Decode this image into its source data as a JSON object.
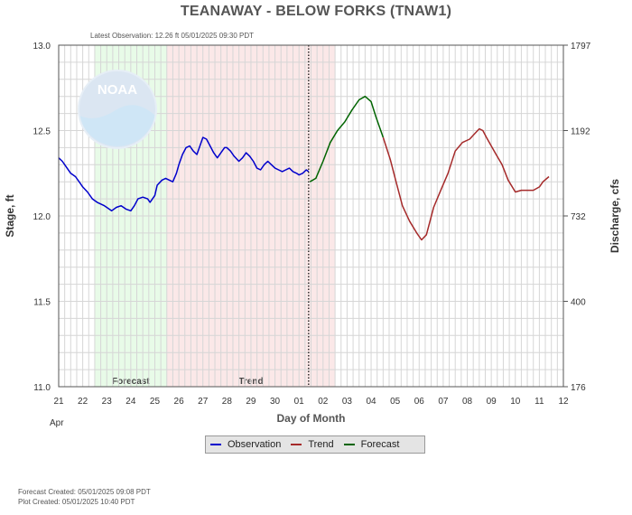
{
  "page": {
    "title": "TEANAWAY - BELOW FORKS  (TNAW1)",
    "latest_observation": "Latest Observation:  12.26 ft 05/01/2025 09:30 PDT",
    "forecast_created": "Forecast Created: 05/01/2025 09:08 PDT",
    "plot_created": "Plot Created: 05/01/2025 10:40 PDT",
    "logo_text": "NOAA"
  },
  "legend": [
    {
      "label": "Observation",
      "color": "#0000cc"
    },
    {
      "label": "Trend",
      "color": "#a52a2a"
    },
    {
      "label": "Forecast",
      "color": "#006400"
    }
  ],
  "chart_data": {
    "type": "line",
    "xlabel": "Day of Month",
    "x_month_label": "Apr",
    "ylabel_left": "Stage, ft",
    "ylabel_right": "Discharge, cfs",
    "x_tick_labels": [
      "21",
      "22",
      "23",
      "24",
      "25",
      "26",
      "27",
      "28",
      "29",
      "30",
      "01",
      "02",
      "03",
      "04",
      "05",
      "06",
      "07",
      "08",
      "09",
      "10",
      "11",
      "12"
    ],
    "ylim_left": [
      11.0,
      13.0
    ],
    "y_ticks_left": [
      "11.0",
      "11.5",
      "12.0",
      "12.5",
      "13.0"
    ],
    "y_ticks_right": [
      {
        "stage": 11.0,
        "label": "176"
      },
      {
        "stage": 11.5,
        "label": "400"
      },
      {
        "stage": 12.0,
        "label": "732"
      },
      {
        "stage": 12.5,
        "label": "1192"
      },
      {
        "stage": 13.0,
        "label": "1797"
      }
    ],
    "grid": true,
    "legend_position": "bottom-center",
    "regions": [
      {
        "label": "Forecast",
        "start_day": 1.5,
        "end_day": 4.5,
        "color": "#e8fbe8"
      },
      {
        "label": "Trend",
        "start_day": 4.5,
        "end_day": 11.5,
        "color": "#fbe8e8"
      }
    ],
    "observation_time_day": 10.4,
    "series": [
      {
        "name": "Observation",
        "color": "#0000cc",
        "x": [
          0,
          0.15,
          0.3,
          0.5,
          0.7,
          0.9,
          1.0,
          1.2,
          1.4,
          1.6,
          1.75,
          1.9,
          2.0,
          2.2,
          2.4,
          2.6,
          2.8,
          3.0,
          3.15,
          3.3,
          3.5,
          3.7,
          3.8,
          4.0,
          4.1,
          4.3,
          4.45,
          4.6,
          4.75,
          4.9,
          5.0,
          5.15,
          5.3,
          5.45,
          5.6,
          5.75,
          5.9,
          6.0,
          6.15,
          6.3,
          6.45,
          6.6,
          6.75,
          6.9,
          7.0,
          7.15,
          7.3,
          7.5,
          7.65,
          7.8,
          7.95,
          8.1,
          8.25,
          8.4,
          8.55,
          8.7,
          8.85,
          9.0,
          9.15,
          9.3,
          9.45,
          9.6,
          9.75,
          9.9,
          10.0,
          10.15,
          10.3,
          10.4
        ],
        "y": [
          12.34,
          12.32,
          12.29,
          12.25,
          12.23,
          12.19,
          12.17,
          12.14,
          12.1,
          12.08,
          12.07,
          12.06,
          12.05,
          12.03,
          12.05,
          12.06,
          12.04,
          12.03,
          12.06,
          12.1,
          12.11,
          12.1,
          12.08,
          12.12,
          12.18,
          12.21,
          12.22,
          12.21,
          12.2,
          12.25,
          12.3,
          12.36,
          12.4,
          12.41,
          12.38,
          12.36,
          12.42,
          12.46,
          12.45,
          12.41,
          12.37,
          12.34,
          12.37,
          12.4,
          12.4,
          12.38,
          12.35,
          12.32,
          12.34,
          12.37,
          12.35,
          12.32,
          12.28,
          12.27,
          12.3,
          12.32,
          12.3,
          12.28,
          12.27,
          12.26,
          12.27,
          12.28,
          12.26,
          12.25,
          12.24,
          12.25,
          12.27,
          12.26
        ]
      },
      {
        "name": "Forecast",
        "color": "#006400",
        "x": [
          10.45,
          10.7,
          11.0,
          11.3,
          11.6,
          11.9,
          12.2,
          12.5,
          12.75,
          13.0,
          13.2,
          13.35,
          13.5
        ],
        "y": [
          12.2,
          12.22,
          12.32,
          12.43,
          12.5,
          12.55,
          12.62,
          12.68,
          12.7,
          12.67,
          12.58,
          12.52,
          12.46
        ]
      },
      {
        "name": "Trend",
        "color": "#a52a2a",
        "x": [
          13.5,
          13.8,
          14.0,
          14.3,
          14.6,
          14.9,
          15.1,
          15.3,
          15.6,
          15.9,
          16.2,
          16.5,
          16.8,
          17.1,
          17.3,
          17.5,
          17.65,
          17.8,
          18.0,
          18.2,
          18.45,
          18.7,
          19.0,
          19.25,
          19.5,
          19.75,
          20.0,
          20.15,
          20.4
        ],
        "y": [
          12.46,
          12.33,
          12.22,
          12.06,
          11.97,
          11.9,
          11.86,
          11.89,
          12.05,
          12.15,
          12.25,
          12.38,
          12.43,
          12.45,
          12.48,
          12.51,
          12.5,
          12.46,
          12.41,
          12.36,
          12.3,
          12.21,
          12.14,
          12.15,
          12.15,
          12.15,
          12.17,
          12.2,
          12.23
        ]
      }
    ]
  }
}
